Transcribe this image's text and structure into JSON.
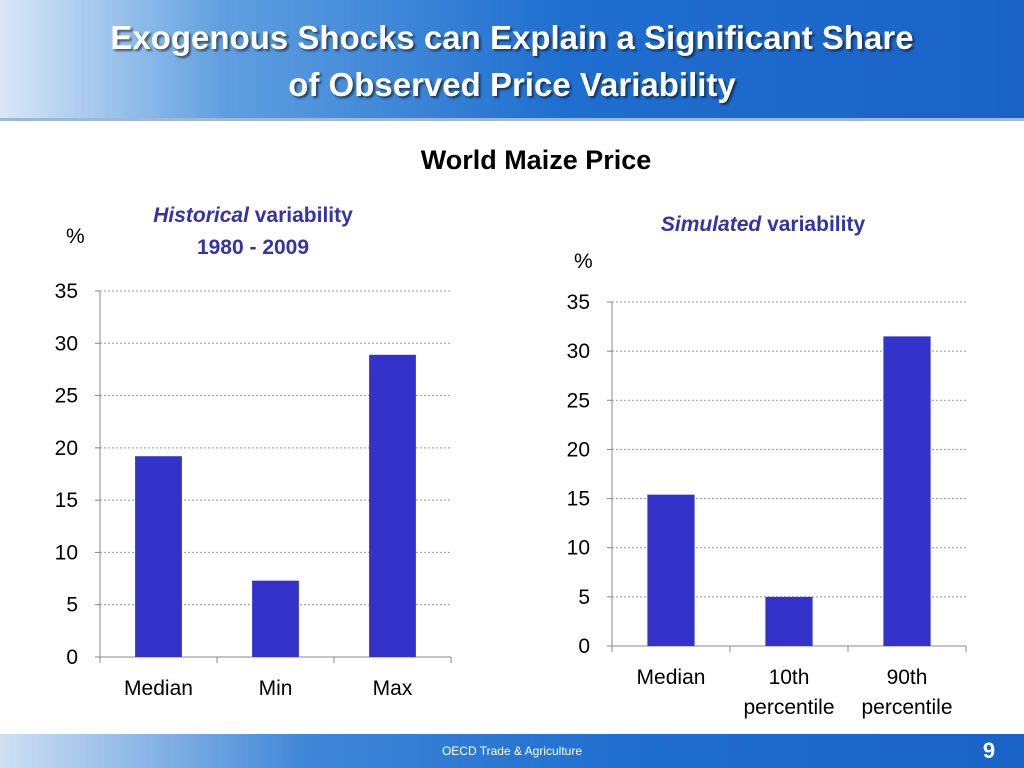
{
  "slide": {
    "title_line1": "Exogenous Shocks can Explain a Significant Share",
    "title_line2": "of Observed Price Variability",
    "chart_heading": "World Maize Price"
  },
  "left_panel": {
    "title_em": "Historical",
    "title_rest": " variability",
    "title_line2": "1980 - 2009",
    "unit": "%"
  },
  "right_panel": {
    "title_em": "Simulated",
    "title_rest": " variability",
    "unit": "%"
  },
  "footer": {
    "text": "OECD Trade & Agriculture",
    "page_number": "9"
  },
  "colors": {
    "bar": "#3333cc",
    "header_blue": "#1f6fd0",
    "panel_title": "#3333aa"
  },
  "chart_data": [
    {
      "type": "bar",
      "title": "Historical variability 1980 - 2009",
      "ylabel": "%",
      "categories": [
        "Median",
        "Min",
        "Max"
      ],
      "values": [
        19.2,
        7.3,
        28.9
      ],
      "ylim": [
        0,
        35
      ],
      "yticks": [
        0,
        5,
        10,
        15,
        20,
        25,
        30,
        35
      ],
      "grid": true
    },
    {
      "type": "bar",
      "title": "Simulated variability",
      "ylabel": "%",
      "categories": [
        "Median",
        "10th percentile",
        "90th percentile"
      ],
      "values": [
        15.4,
        5.0,
        31.5
      ],
      "ylim": [
        0,
        35
      ],
      "yticks": [
        0,
        5,
        10,
        15,
        20,
        25,
        30,
        35
      ],
      "grid": true
    }
  ]
}
